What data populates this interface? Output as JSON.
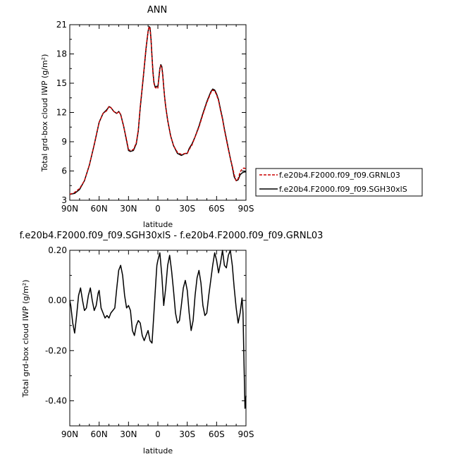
{
  "chart_data": [
    {
      "type": "line",
      "title": "ANN",
      "xlabel": "latitude",
      "ylabel": "Total grd-box cloud IWP (g/m²)",
      "xlim": [
        90,
        -90
      ],
      "ylim": [
        3,
        21
      ],
      "x_ticks": [
        90,
        60,
        30,
        0,
        -30,
        -60,
        -90
      ],
      "x_tick_labels": [
        "90N",
        "60N",
        "30N",
        "0",
        "30S",
        "60S",
        "90S"
      ],
      "y_ticks": [
        3,
        6,
        9,
        12,
        15,
        18,
        21
      ],
      "y_tick_labels": [
        "3",
        "6",
        "9",
        "12",
        "15",
        "18",
        "21"
      ],
      "legend_position": "right",
      "series": [
        {
          "name": "f.e20b4.F2000.f09_f09.GRNL03",
          "color": "#cc0000",
          "dash": "dashed",
          "x": [
            90,
            85,
            80,
            75,
            70,
            65,
            60,
            56,
            52,
            50,
            48,
            45,
            42,
            40,
            38,
            35,
            32,
            30,
            28,
            25,
            22,
            20,
            18,
            15,
            12,
            10,
            9,
            8,
            7,
            6,
            5,
            4,
            3,
            2,
            1,
            0,
            -2,
            -3,
            -4,
            -5,
            -6,
            -7,
            -8,
            -10,
            -13,
            -16,
            -20,
            -24,
            -28,
            -30,
            -32,
            -35,
            -38,
            -42,
            -46,
            -50,
            -54,
            -56,
            -58,
            -60,
            -62,
            -64,
            -66,
            -68,
            -70,
            -72,
            -74,
            -76,
            -78,
            -80,
            -82,
            -84,
            -86,
            -88,
            -90
          ],
          "values": [
            3.6,
            3.8,
            4.2,
            5.0,
            6.6,
            8.7,
            11.0,
            11.9,
            12.2,
            12.6,
            12.5,
            12.1,
            11.9,
            12.1,
            11.8,
            10.6,
            9.2,
            8.2,
            8.1,
            8.2,
            8.9,
            10.2,
            12.6,
            15.6,
            18.7,
            20.3,
            20.8,
            20.6,
            19.4,
            17.6,
            16.0,
            15.0,
            14.6,
            14.5,
            14.6,
            14.5,
            16.4,
            16.8,
            16.6,
            15.8,
            14.6,
            13.5,
            12.6,
            11.2,
            9.6,
            8.6,
            7.9,
            7.7,
            7.8,
            7.8,
            8.2,
            8.7,
            9.5,
            10.5,
            11.8,
            13.0,
            14.0,
            14.3,
            14.2,
            13.8,
            13.2,
            12.2,
            11.3,
            10.2,
            9.2,
            8.2,
            7.3,
            6.5,
            5.6,
            5.0,
            5.2,
            5.9,
            6.2,
            6.3,
            6.2
          ]
        },
        {
          "name": "f.e20b4.F2000.f09_f09.SGH30xlS",
          "color": "#000000",
          "dash": "solid",
          "x": [
            90,
            85,
            80,
            75,
            70,
            65,
            60,
            56,
            52,
            50,
            48,
            45,
            42,
            40,
            38,
            35,
            32,
            30,
            28,
            25,
            22,
            20,
            18,
            15,
            12,
            10,
            9,
            8,
            7,
            6,
            5,
            4,
            3,
            2,
            1,
            0,
            -2,
            -3,
            -4,
            -5,
            -6,
            -7,
            -8,
            -10,
            -13,
            -16,
            -20,
            -24,
            -28,
            -30,
            -32,
            -35,
            -38,
            -42,
            -46,
            -50,
            -54,
            -56,
            -58,
            -60,
            -62,
            -64,
            -66,
            -68,
            -70,
            -72,
            -74,
            -76,
            -78,
            -80,
            -82,
            -84,
            -86,
            -88,
            -90
          ],
          "values": [
            3.6,
            3.7,
            4.1,
            5.0,
            6.6,
            8.7,
            11.0,
            11.9,
            12.3,
            12.6,
            12.5,
            12.1,
            11.9,
            12.1,
            11.8,
            10.6,
            9.1,
            8.1,
            8.0,
            8.1,
            8.8,
            10.1,
            12.5,
            15.5,
            18.6,
            20.3,
            20.8,
            20.7,
            19.5,
            17.7,
            16.1,
            15.1,
            14.7,
            14.6,
            14.7,
            14.6,
            16.5,
            16.9,
            16.7,
            15.9,
            14.6,
            13.5,
            12.6,
            11.2,
            9.6,
            8.6,
            7.8,
            7.6,
            7.8,
            7.8,
            8.3,
            8.8,
            9.5,
            10.6,
            11.9,
            13.1,
            14.1,
            14.4,
            14.3,
            13.9,
            13.3,
            12.3,
            11.4,
            10.3,
            9.3,
            8.3,
            7.3,
            6.4,
            5.4,
            5.0,
            5.1,
            5.6,
            5.8,
            5.9,
            5.9
          ]
        }
      ]
    },
    {
      "type": "line",
      "title": "f.e20b4.F2000.f09_f09.SGH30xlS - f.e20b4.F2000.f09_f09.GRNL03",
      "xlabel": "latitude",
      "ylabel": "Total grd-box cloud IWP (g/m²)",
      "xlim": [
        90,
        -90
      ],
      "ylim": [
        -0.5,
        0.2
      ],
      "x_ticks": [
        90,
        60,
        30,
        0,
        -30,
        -60,
        -90
      ],
      "x_tick_labels": [
        "90N",
        "60N",
        "30N",
        "0",
        "30S",
        "60S",
        "90S"
      ],
      "y_ticks": [
        0.2,
        0.0,
        -0.2,
        -0.4
      ],
      "y_tick_labels": [
        "0.20",
        "0.00",
        "-0.20",
        "-0.40"
      ],
      "series": [
        {
          "color": "#000000",
          "dash": "solid",
          "x": [
            90,
            89,
            87,
            85,
            83,
            81,
            79,
            77,
            75,
            73,
            71,
            69,
            67,
            65,
            63,
            61,
            60,
            58,
            56,
            54,
            52,
            50,
            48,
            46,
            44,
            42,
            40,
            38,
            36,
            34,
            32,
            30,
            28,
            26,
            24,
            22,
            20,
            18,
            16,
            14,
            12,
            10,
            8,
            6,
            4,
            2,
            1,
            0,
            -2,
            -4,
            -6,
            -8,
            -10,
            -12,
            -14,
            -16,
            -18,
            -20,
            -22,
            -24,
            -26,
            -28,
            -30,
            -32,
            -34,
            -36,
            -38,
            -40,
            -42,
            -44,
            -46,
            -48,
            -50,
            -52,
            -54,
            -56,
            -58,
            -60,
            -62,
            -64,
            -66,
            -68,
            -70,
            -72,
            -74,
            -76,
            -78,
            -80,
            -82,
            -84,
            -86,
            -87,
            -88,
            -89,
            -90
          ],
          "values": [
            0.0,
            -0.02,
            -0.09,
            -0.13,
            -0.06,
            0.02,
            0.05,
            0.0,
            -0.04,
            -0.03,
            0.02,
            0.05,
            0.0,
            -0.04,
            -0.02,
            0.03,
            0.04,
            -0.03,
            -0.05,
            -0.07,
            -0.06,
            -0.07,
            -0.05,
            -0.04,
            -0.03,
            0.05,
            0.12,
            0.14,
            0.1,
            0.02,
            -0.03,
            -0.02,
            -0.04,
            -0.12,
            -0.14,
            -0.1,
            -0.08,
            -0.09,
            -0.14,
            -0.16,
            -0.14,
            -0.12,
            -0.16,
            -0.17,
            -0.05,
            0.08,
            0.14,
            0.16,
            0.19,
            0.1,
            -0.02,
            0.05,
            0.14,
            0.18,
            0.12,
            0.04,
            -0.05,
            -0.09,
            -0.08,
            -0.02,
            0.05,
            0.08,
            0.04,
            -0.05,
            -0.12,
            -0.08,
            0.02,
            0.09,
            0.12,
            0.07,
            -0.02,
            -0.06,
            -0.05,
            0.02,
            0.08,
            0.14,
            0.19,
            0.16,
            0.11,
            0.15,
            0.2,
            0.14,
            0.13,
            0.18,
            0.2,
            0.14,
            0.05,
            -0.03,
            -0.09,
            -0.05,
            0.01,
            -0.05,
            -0.25,
            -0.43,
            -0.38
          ]
        }
      ]
    }
  ]
}
